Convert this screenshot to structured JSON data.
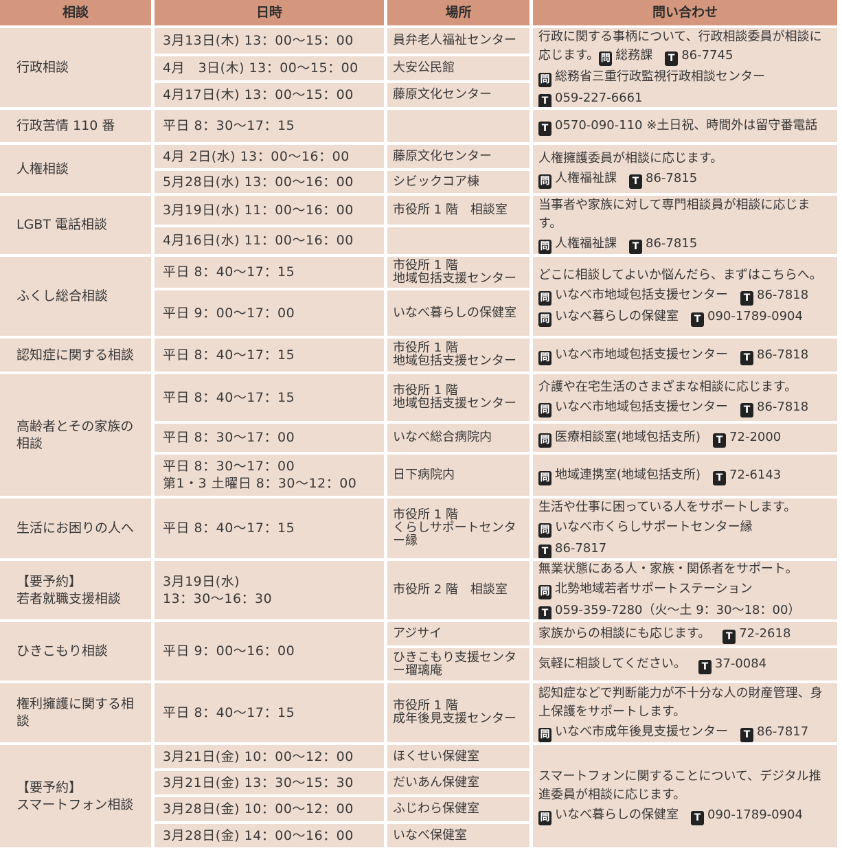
{
  "header": {
    "category": "相談",
    "datetime": "日時",
    "place": "場所",
    "inquiry": "問い合わせ"
  },
  "badges": {
    "q": "問",
    "tel": "T"
  },
  "colors": {
    "header_bg": "#d4977e",
    "cell_bg": "#efdcd0",
    "badge_bg": "#222222"
  },
  "rows": [
    {
      "category": "行政相談",
      "dates": [
        "3月13日(木)  13：00～15：00",
        "4月　3日(木)  13：00～15：00",
        "4月17日(木)  13：00～15：00"
      ],
      "places": [
        "員弁老人福祉センター",
        "大安公民館",
        "藤原文化センター"
      ],
      "inquiries": [
        [
          [
            "行政に関する事柄について、行政相談委員が相談に応じます。",
            {
              "badge": "q"
            },
            "総務課",
            {
              "gap": 1
            },
            {
              "badge": "tel"
            },
            "86-7745"
          ],
          [
            {
              "badge": "q"
            },
            "総務省三重行政監視行政相談センター"
          ],
          [
            {
              "badge": "tel"
            },
            "059-227-6661"
          ]
        ]
      ]
    },
    {
      "category": "行政苦情 110 番",
      "dates": [
        "平日 8：30～17：15"
      ],
      "places": [
        ""
      ],
      "inquiries": [
        [
          [
            {
              "badge": "tel"
            },
            "0570-090-110 ※土日祝、時間外は留守番電話"
          ]
        ]
      ]
    },
    {
      "category": "人権相談",
      "dates": [
        "4月 2日(水)  13：00～16：00",
        "5月28日(水)  13：00～16：00"
      ],
      "places": [
        "藤原文化センター",
        "シビックコア棟"
      ],
      "inquiries": [
        [
          [
            "人権擁護委員が相談に応じます。"
          ],
          [
            {
              "badge": "q"
            },
            "人権福祉課",
            {
              "gap": 1
            },
            {
              "badge": "tel"
            },
            "86-7815"
          ]
        ]
      ]
    },
    {
      "category": "LGBT 電話相談",
      "dates": [
        "3月19日(水)  11：00～16：00",
        "4月16日(水)  11：00～16：00"
      ],
      "places": [
        "市役所 1 階　相談室",
        ""
      ],
      "inquiries": [
        [
          [
            "当事者や家族に対して専門相談員が相談に応じます。"
          ],
          [
            {
              "badge": "q"
            },
            "人権福祉課",
            {
              "gap": 1
            },
            {
              "badge": "tel"
            },
            "86-7815"
          ]
        ]
      ]
    },
    {
      "category": "ふくし総合相談",
      "dates": [
        "平日 8：40～17：15",
        "平日 9：00～17：00"
      ],
      "places": [
        "市役所 1 階\n地域包括支援センター",
        "いなべ暮らしの保健室"
      ],
      "inquiries": [
        [
          [
            "どこに相談してよいか悩んだら、まずはこちらへ。"
          ],
          [
            {
              "badge": "q"
            },
            "いなべ市地域包括支援センター",
            {
              "gap": 1
            },
            {
              "badge": "tel"
            },
            "86-7818"
          ],
          [
            {
              "badge": "q"
            },
            "いなべ暮らしの保健室",
            {
              "gap": 1
            },
            {
              "badge": "tel"
            },
            "090-1789-0904"
          ]
        ]
      ]
    },
    {
      "category": "認知症に関する相談",
      "dates": [
        "平日 8：40～17：15"
      ],
      "places": [
        "市役所 1 階\n地域包括支援センター"
      ],
      "inquiries": [
        [
          [
            {
              "badge": "q"
            },
            "いなべ市地域包括支援センター",
            {
              "gap": 1
            },
            {
              "badge": "tel"
            },
            "86-7818"
          ]
        ]
      ]
    },
    {
      "category": "高齢者とその家族の相談",
      "dates": [
        "平日 8：40～17：15",
        "平日 8：30～17：00",
        "平日 8：30～17：00\n第1・3 土曜日 8：30～12：00"
      ],
      "places": [
        "市役所 1 階\n地域包括支援センター",
        "いなべ総合病院内",
        "日下病院内"
      ],
      "inquiries": [
        [
          [
            "介護や在宅生活のさまざまな相談に応じます。"
          ],
          [
            {
              "badge": "q"
            },
            "いなべ市地域包括支援センター",
            {
              "gap": 1
            },
            {
              "badge": "tel"
            },
            "86-7818"
          ]
        ],
        [
          [
            {
              "badge": "q"
            },
            "医療相談室(地域包括支所)",
            {
              "gap": 1
            },
            {
              "badge": "tel"
            },
            "72-2000"
          ]
        ],
        [
          [
            {
              "badge": "q"
            },
            "地域連携室(地域包括支所)",
            {
              "gap": 1
            },
            {
              "badge": "tel"
            },
            "72-6143"
          ]
        ]
      ]
    },
    {
      "category": "生活にお困りの人へ",
      "dates": [
        "平日 8：40～17：15"
      ],
      "places": [
        "市役所 1 階\nくらしサポートセンター縁"
      ],
      "inquiries": [
        [
          [
            "生活や仕事に困っている人をサポートします。"
          ],
          [
            {
              "badge": "q"
            },
            "いなべ市くらしサポートセンター縁"
          ],
          [
            {
              "badge": "tel"
            },
            "86-7817"
          ]
        ]
      ]
    },
    {
      "category": "【要予約】\n若者就職支援相談",
      "dates": [
        "3月19日(水)\n13：30～16：30"
      ],
      "places": [
        "市役所 2 階　相談室"
      ],
      "inquiries": [
        [
          [
            "無業状態にある人・家族・関係者をサポート。"
          ],
          [
            {
              "badge": "q"
            },
            "北勢地域若者サポートステーション"
          ],
          [
            {
              "badge": "tel"
            },
            "059-359-7280（火～土 9：30～18：00）"
          ]
        ]
      ]
    },
    {
      "category": "ひきこもり相談",
      "dates": [
        "平日 9：00～16：00"
      ],
      "places": [
        "アジサイ",
        "ひきこもり支援センター瑠璃庵"
      ],
      "inquiries": [
        [
          [
            "家族からの相談にも応じます。",
            {
              "gap": 1
            },
            {
              "badge": "tel"
            },
            "72-2618"
          ]
        ],
        [
          [
            "気軽に相談してください。",
            {
              "gap": 1
            },
            {
              "badge": "tel"
            },
            "37-0084"
          ]
        ]
      ]
    },
    {
      "category": "権利擁護に関する相談",
      "dates": [
        "平日 8：40～17：15"
      ],
      "places": [
        "市役所 1 階\n成年後見支援センター"
      ],
      "inquiries": [
        [
          [
            "認知症などで判断能力が不十分な人の財産管理、身上保護をサポートします。"
          ],
          [
            {
              "badge": "q"
            },
            "いなべ市成年後見支援センター",
            {
              "gap": 1
            },
            {
              "badge": "tel"
            },
            "86-7817"
          ]
        ]
      ]
    },
    {
      "category": "【要予約】\nスマートフォン相談",
      "dates": [
        "3月21日(金)  10：00～12：00",
        "3月21日(金)  13：30～15：30",
        "3月28日(金)  10：00～12：00",
        "3月28日(金)  14：00～16：00"
      ],
      "places": [
        "ほくせい保健室",
        "だいあん保健室",
        "ふじわら保健室",
        "いなべ保健室"
      ],
      "inquiries": [
        [
          [
            "スマートフォンに関することについて、デジタル推進委員が相談に応じます。"
          ],
          [
            {
              "badge": "q"
            },
            "いなべ暮らしの保健室",
            {
              "gap": 1
            },
            {
              "badge": "tel"
            },
            "090-1789-0904"
          ]
        ]
      ]
    }
  ]
}
